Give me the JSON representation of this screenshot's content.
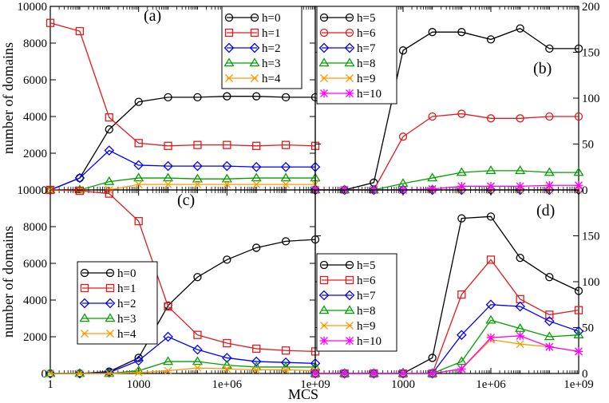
{
  "figure": {
    "xlabel": "MCS",
    "ylabel_top": "number of domains",
    "ylabel_bottom": "number of domains"
  },
  "chart_data": [
    {
      "type": "line",
      "panel_label": "(a)",
      "x_scale": "log",
      "x_ticks": [],
      "y_axis": "left",
      "ylim": [
        0,
        10000
      ],
      "y_ticks": [
        "0",
        "2000",
        "4000",
        "6000",
        "8000",
        "10000"
      ],
      "y_tick_values": [
        0,
        2000,
        4000,
        6000,
        8000,
        10000
      ],
      "legend_position": "top-right",
      "x": [
        1,
        10,
        100,
        1000,
        10000,
        100000,
        1000000,
        10000000,
        100000000,
        1000000000
      ],
      "series": [
        {
          "name": "h=0",
          "color": "#000000",
          "marker": "circle",
          "values": [
            0,
            650,
            3300,
            4800,
            5050,
            5050,
            5100,
            5100,
            5050,
            5050
          ]
        },
        {
          "name": "h=1",
          "color": "#e31a1c",
          "marker": "square",
          "values": [
            9100,
            8650,
            3950,
            2550,
            2400,
            2450,
            2450,
            2400,
            2450,
            2400
          ]
        },
        {
          "name": "h=2",
          "color": "#0000ff",
          "marker": "diamond",
          "values": [
            0,
            650,
            2150,
            1350,
            1300,
            1300,
            1300,
            1250,
            1250,
            1250
          ]
        },
        {
          "name": "h=3",
          "color": "#00a000",
          "marker": "triangle",
          "values": [
            0,
            0,
            450,
            650,
            650,
            600,
            600,
            650,
            650,
            650
          ]
        },
        {
          "name": "h=4",
          "color": "#ff9900",
          "marker": "x",
          "values": [
            0,
            0,
            0,
            300,
            300,
            300,
            300,
            300,
            300,
            300
          ]
        }
      ]
    },
    {
      "type": "line",
      "panel_label": "(b)",
      "x_scale": "log",
      "x_ticks": [],
      "y_axis": "right",
      "ylim": [
        0,
        200
      ],
      "y_ticks": [
        "0",
        "50",
        "100",
        "150",
        "200"
      ],
      "y_tick_values": [
        0,
        50,
        100,
        150,
        200
      ],
      "legend_position": "top-left",
      "x": [
        1,
        10,
        100,
        1000,
        10000,
        100000,
        1000000,
        10000000,
        100000000,
        1000000000
      ],
      "series": [
        {
          "name": "h=5",
          "color": "#000000",
          "marker": "circle",
          "values": [
            0,
            0,
            8,
            152,
            172,
            172,
            164,
            176,
            154,
            154
          ]
        },
        {
          "name": "h=6",
          "color": "#e31a1c",
          "marker": "circle",
          "values": [
            0,
            0,
            0,
            58,
            80,
            83,
            78,
            78,
            80,
            80
          ]
        },
        {
          "name": "h=7",
          "color": "#0000ff",
          "marker": "diamond",
          "values": [
            0,
            0,
            0,
            0,
            0,
            0,
            0,
            0,
            0,
            0
          ]
        },
        {
          "name": "h=8",
          "color": "#00a000",
          "marker": "triangle",
          "values": [
            0,
            0,
            0,
            7,
            13,
            19,
            21,
            21,
            19,
            19
          ]
        },
        {
          "name": "h=9",
          "color": "#ff9900",
          "marker": "x",
          "values": [
            0,
            0,
            0,
            0,
            0,
            0,
            0,
            0,
            0,
            0
          ]
        },
        {
          "name": "h=10",
          "color": "#ff00ff",
          "marker": "star",
          "values": [
            0,
            0,
            0,
            0,
            1,
            4,
            4,
            4,
            5,
            5
          ]
        }
      ]
    },
    {
      "type": "line",
      "panel_label": "(c)",
      "x_scale": "log",
      "x_ticks": [
        "1",
        "1000",
        "1e+06",
        "1e+09"
      ],
      "x_tick_values": [
        1,
        1000,
        1000000,
        1000000000
      ],
      "y_axis": "left",
      "ylim": [
        0,
        10000
      ],
      "y_ticks": [
        "0",
        "2000",
        "4000",
        "6000",
        "8000",
        "10000"
      ],
      "y_tick_values": [
        0,
        2000,
        4000,
        6000,
        8000,
        10000
      ],
      "legend_position": "bottom-left",
      "x": [
        1,
        10,
        100,
        1000,
        10000,
        100000,
        1000000,
        10000000,
        100000000,
        1000000000
      ],
      "series": [
        {
          "name": "h=0",
          "color": "#000000",
          "marker": "circle",
          "values": [
            0,
            0,
            100,
            850,
            3700,
            5250,
            6200,
            6850,
            7200,
            7300
          ]
        },
        {
          "name": "h=1",
          "color": "#e31a1c",
          "marker": "square",
          "values": [
            10000,
            9950,
            9800,
            8300,
            3650,
            2100,
            1650,
            1350,
            1250,
            1200
          ]
        },
        {
          "name": "h=2",
          "color": "#0000ff",
          "marker": "diamond",
          "values": [
            0,
            0,
            50,
            700,
            2000,
            1300,
            850,
            650,
            600,
            550
          ]
        },
        {
          "name": "h=3",
          "color": "#00a000",
          "marker": "triangle",
          "values": [
            0,
            0,
            0,
            150,
            650,
            650,
            450,
            350,
            350,
            350
          ]
        },
        {
          "name": "h=4",
          "color": "#ff9900",
          "marker": "x",
          "values": [
            0,
            0,
            0,
            50,
            150,
            300,
            250,
            200,
            200,
            150
          ]
        }
      ]
    },
    {
      "type": "line",
      "panel_label": "(d)",
      "x_scale": "log",
      "x_ticks": [
        "1000",
        "1e+06",
        "1e+09"
      ],
      "x_tick_values": [
        1000,
        1000000,
        1000000000
      ],
      "y_axis": "right",
      "ylim": [
        0,
        200
      ],
      "y_ticks": [
        "0",
        "50",
        "100",
        "150"
      ],
      "y_tick_values": [
        0,
        50,
        100,
        150
      ],
      "legend_position": "bottom-left",
      "x": [
        1,
        10,
        100,
        1000,
        10000,
        100000,
        1000000,
        10000000,
        100000000,
        1000000000
      ],
      "series": [
        {
          "name": "h=5",
          "color": "#000000",
          "marker": "circle",
          "values": [
            0,
            0,
            0,
            0,
            17,
            169,
            171,
            126,
            105,
            90
          ]
        },
        {
          "name": "h=6",
          "color": "#e31a1c",
          "marker": "square",
          "values": [
            0,
            0,
            0,
            0,
            0,
            86,
            124,
            81,
            64,
            69
          ]
        },
        {
          "name": "h=7",
          "color": "#0000ff",
          "marker": "diamond",
          "values": [
            0,
            0,
            0,
            0,
            0,
            42,
            75,
            73,
            57,
            46
          ]
        },
        {
          "name": "h=8",
          "color": "#00a000",
          "marker": "triangle",
          "values": [
            0,
            0,
            0,
            0,
            0,
            13,
            58,
            49,
            40,
            42
          ]
        },
        {
          "name": "h=9",
          "color": "#ff9900",
          "marker": "x",
          "values": [
            0,
            0,
            0,
            0,
            0,
            5,
            37,
            32,
            29,
            24
          ]
        },
        {
          "name": "h=10",
          "color": "#ff00ff",
          "marker": "star",
          "values": [
            0,
            0,
            0,
            0,
            0,
            5,
            39,
            41,
            29,
            24
          ]
        }
      ]
    }
  ]
}
